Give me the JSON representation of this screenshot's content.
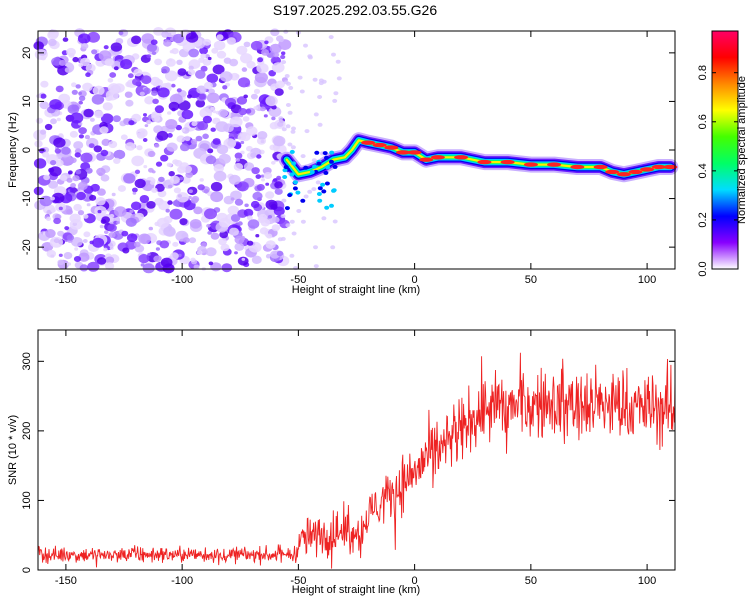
{
  "title": "S197.2025.292.03.55.G26",
  "chart_data": [
    {
      "type": "heatmap",
      "name": "spectrogram",
      "xlabel": "Height of straight line (km)",
      "ylabel": "Frequency (Hz)",
      "xlim": [
        -162,
        112
      ],
      "ylim": [
        -24.5,
        24.5
      ],
      "xticks": [
        -150,
        -100,
        -50,
        0,
        50,
        100
      ],
      "xtick_labels": [
        "-150",
        "-100",
        "-50",
        "0",
        "50",
        "100"
      ],
      "yticks": [
        20,
        10,
        0,
        -10,
        -20
      ],
      "ytick_labels": [
        "20",
        "10",
        "0",
        "-10",
        "-20"
      ],
      "noise_region_x": [
        -162,
        -58
      ],
      "ridge_points": [
        {
          "x": -55,
          "y": -2.0
        },
        {
          "x": -50,
          "y": -5.0
        },
        {
          "x": -45,
          "y": -4.5
        },
        {
          "x": -40,
          "y": -3.5
        },
        {
          "x": -35,
          "y": -2.0
        },
        {
          "x": -30,
          "y": -1.5
        },
        {
          "x": -27,
          "y": 0.0
        },
        {
          "x": -24,
          "y": 2.0
        },
        {
          "x": -20,
          "y": 1.5
        },
        {
          "x": -15,
          "y": 1.0
        },
        {
          "x": -10,
          "y": 0.5
        },
        {
          "x": -5,
          "y": -0.5
        },
        {
          "x": 0,
          "y": -0.5
        },
        {
          "x": 5,
          "y": -2.0
        },
        {
          "x": 10,
          "y": -1.5
        },
        {
          "x": 20,
          "y": -1.5
        },
        {
          "x": 30,
          "y": -2.5
        },
        {
          "x": 40,
          "y": -2.5
        },
        {
          "x": 50,
          "y": -3.0
        },
        {
          "x": 60,
          "y": -3.0
        },
        {
          "x": 70,
          "y": -3.5
        },
        {
          "x": 80,
          "y": -3.5
        },
        {
          "x": 85,
          "y": -4.5
        },
        {
          "x": 90,
          "y": -5.0
        },
        {
          "x": 95,
          "y": -4.5
        },
        {
          "x": 100,
          "y": -4.0
        },
        {
          "x": 105,
          "y": -3.5
        },
        {
          "x": 110,
          "y": -3.5
        }
      ],
      "colorbar": {
        "label": "Normalized spectral amplitude",
        "range": [
          0,
          0.97
        ],
        "ticks": [
          0.0,
          0.2,
          0.4,
          0.6,
          0.8
        ],
        "tick_labels": [
          "0.0",
          "0.2",
          "0.4",
          "0.6",
          "0.8"
        ],
        "colors": [
          "#ffffff",
          "#8800ff",
          "#0000ff",
          "#00ddff",
          "#00ff66",
          "#44ff00",
          "#ffff00",
          "#ff8800",
          "#ff0000",
          "#ff0066"
        ]
      }
    },
    {
      "type": "line",
      "name": "snr",
      "xlabel": "Height of straight line (km)",
      "ylabel": "SNR (10 * v/v)",
      "xlim": [
        -162,
        112
      ],
      "ylim": [
        0,
        345
      ],
      "xticks": [
        -150,
        -100,
        -50,
        0,
        50,
        100
      ],
      "xtick_labels": [
        "-150",
        "-100",
        "-50",
        "0",
        "50",
        "100"
      ],
      "yticks": [
        0,
        100,
        200,
        300
      ],
      "ytick_labels": [
        "0",
        "100",
        "200",
        "300"
      ],
      "color": "#ee2222",
      "mean_profile": [
        {
          "x": -162,
          "y": 22
        },
        {
          "x": -52,
          "y": 22
        },
        {
          "x": -48,
          "y": 45
        },
        {
          "x": -40,
          "y": 50
        },
        {
          "x": -30,
          "y": 55
        },
        {
          "x": -22,
          "y": 60
        },
        {
          "x": -18,
          "y": 90
        },
        {
          "x": -10,
          "y": 110
        },
        {
          "x": 0,
          "y": 140
        },
        {
          "x": 5,
          "y": 160
        },
        {
          "x": 10,
          "y": 175
        },
        {
          "x": 20,
          "y": 200
        },
        {
          "x": 25,
          "y": 215
        },
        {
          "x": 30,
          "y": 230
        },
        {
          "x": 40,
          "y": 235
        },
        {
          "x": 60,
          "y": 240
        },
        {
          "x": 80,
          "y": 238
        },
        {
          "x": 100,
          "y": 232
        },
        {
          "x": 112,
          "y": 230
        }
      ],
      "spread_profile": [
        {
          "x": -162,
          "y": 8
        },
        {
          "x": -52,
          "y": 8
        },
        {
          "x": -48,
          "y": 20
        },
        {
          "x": -22,
          "y": 22
        },
        {
          "x": 0,
          "y": 30
        },
        {
          "x": 30,
          "y": 35
        },
        {
          "x": 112,
          "y": 38
        }
      ]
    }
  ]
}
